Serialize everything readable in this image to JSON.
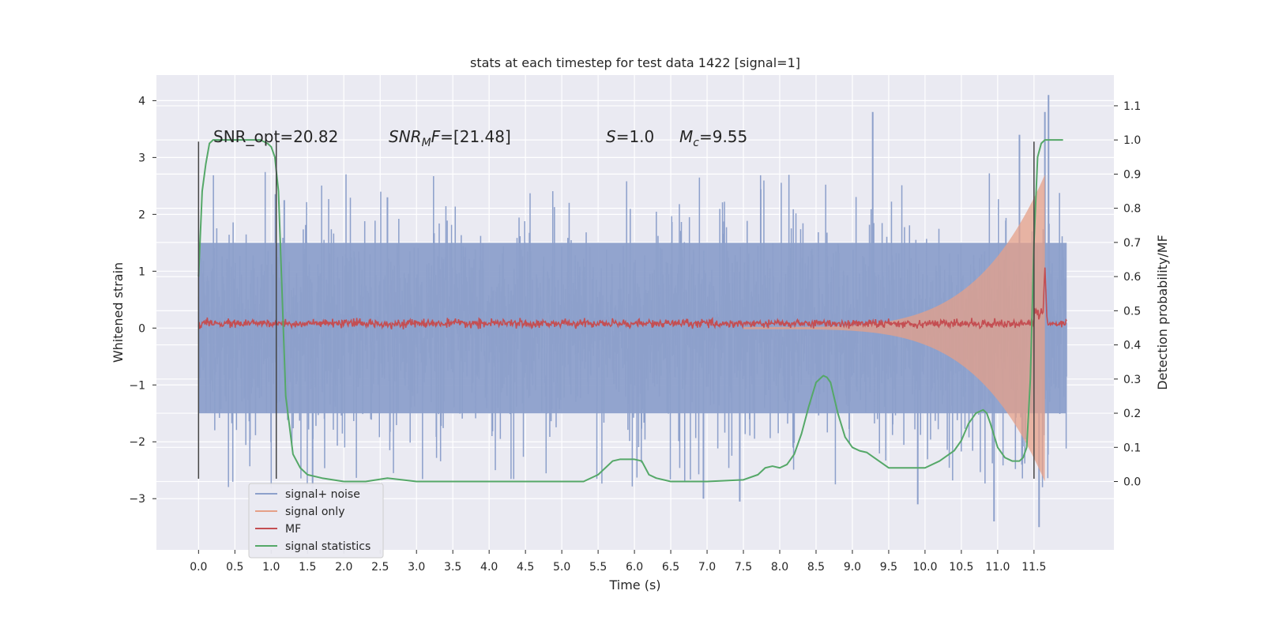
{
  "chart_data": {
    "type": "line",
    "title": "stats at each timestep for test data 1422 [signal=1]",
    "xlabel": "Time (s)",
    "ylabel": "Whitened strain",
    "ylabel_right": "Detection probability/MF",
    "xlim": [
      -0.58,
      12.6
    ],
    "ylim": [
      -3.9,
      4.45
    ],
    "ylim_right": [
      -0.2,
      1.19
    ],
    "x_ticks": [
      0.0,
      0.5,
      1.0,
      1.5,
      2.0,
      2.5,
      3.0,
      3.5,
      4.0,
      4.5,
      5.0,
      5.5,
      6.0,
      6.5,
      7.0,
      7.5,
      8.0,
      8.5,
      9.0,
      9.5,
      10.0,
      10.5,
      11.0,
      11.5
    ],
    "x_tick_labels": [
      "0.0",
      "0.5",
      "1.0",
      "1.5",
      "2.0",
      "2.5",
      "3.0",
      "3.5",
      "4.0",
      "4.5",
      "5.0",
      "5.5",
      "6.0",
      "6.5",
      "7.0",
      "7.5",
      "8.0",
      "8.5",
      "9.0",
      "9.5",
      "10.0",
      "10.5",
      "11.0",
      "11.5"
    ],
    "y_ticks": [
      -3,
      -2,
      -1,
      0,
      1,
      2,
      3,
      4
    ],
    "y_tick_labels": [
      "−3",
      "−2",
      "−1",
      "0",
      "1",
      "2",
      "3",
      "4"
    ],
    "y_right_ticks": [
      0.0,
      0.1,
      0.2,
      0.3,
      0.4,
      0.5,
      0.6,
      0.7,
      0.8,
      0.9,
      1.0,
      1.1
    ],
    "y_right_tick_labels": [
      "0.0",
      "0.1",
      "0.2",
      "0.3",
      "0.4",
      "0.5",
      "0.6",
      "0.7",
      "0.8",
      "0.9",
      "1.0",
      "1.1"
    ],
    "grid": true,
    "legend": "lower-left",
    "annotations": [
      {
        "text": "SNR_opt=20.82",
        "x": 0.2,
        "y": 3.3
      },
      {
        "text": "SNR_MF=[21.48]",
        "x": 2.6,
        "y": 3.3
      },
      {
        "text": "S=1.0",
        "x": 5.6,
        "y": 3.3
      },
      {
        "text": "M_c=9.55",
        "x": 6.6,
        "y": 3.3
      }
    ],
    "vlines": [
      {
        "x": 0.0,
        "ymin": -2.65,
        "ymax": 3.28
      },
      {
        "x": 1.07,
        "ymin": -2.65,
        "ymax": 3.28
      },
      {
        "x": 11.5,
        "ymin": -2.65,
        "ymax": 3.28
      }
    ],
    "series": [
      {
        "name": "signal+ noise",
        "axis": "left",
        "color": "#8da0cb",
        "description_values": {
          "x_range": [
            0.0,
            11.95
          ],
          "typical_amplitude": 1.5,
          "peak_max": 4.1,
          "peak_min": -3.5
        }
      },
      {
        "name": "signal only",
        "axis": "left",
        "color": "#e5a088",
        "chirp": {
          "x_start": 7.5,
          "x_end": 11.65,
          "amplitude_start": 0.02,
          "amplitude_end": 2.7
        }
      },
      {
        "name": "MF",
        "axis": "left",
        "color": "#c44e52",
        "baseline": 0.08,
        "peak": {
          "x": 11.65,
          "y": 1.0
        }
      },
      {
        "name": "signal statistics",
        "axis": "right",
        "color": "#55a868",
        "x": [
          0.0,
          0.05,
          0.1,
          0.15,
          0.2,
          0.3,
          0.5,
          0.7,
          0.85,
          0.95,
          1.0,
          1.05,
          1.1,
          1.15,
          1.2,
          1.3,
          1.4,
          1.5,
          1.7,
          2.0,
          2.3,
          2.6,
          3.0,
          3.5,
          4.0,
          4.5,
          5.0,
          5.3,
          5.5,
          5.6,
          5.7,
          5.8,
          6.0,
          6.1,
          6.2,
          6.3,
          6.5,
          7.0,
          7.5,
          7.7,
          7.8,
          7.9,
          8.0,
          8.1,
          8.2,
          8.3,
          8.4,
          8.5,
          8.6,
          8.65,
          8.7,
          8.8,
          8.9,
          9.0,
          9.1,
          9.2,
          9.3,
          9.5,
          9.7,
          9.9,
          10.0,
          10.2,
          10.4,
          10.5,
          10.6,
          10.7,
          10.8,
          10.85,
          10.9,
          11.0,
          11.1,
          11.2,
          11.3,
          11.35,
          11.4,
          11.45,
          11.5,
          11.55,
          11.6,
          11.65,
          11.7,
          11.8,
          11.9
        ],
        "values": [
          0.6,
          0.85,
          0.93,
          0.99,
          1.0,
          1.0,
          1.0,
          1.0,
          1.0,
          0.99,
          0.98,
          0.95,
          0.85,
          0.55,
          0.25,
          0.08,
          0.04,
          0.02,
          0.01,
          0.0,
          0.0,
          0.01,
          0.0,
          0.0,
          0.0,
          0.0,
          0.0,
          0.0,
          0.02,
          0.04,
          0.06,
          0.065,
          0.065,
          0.06,
          0.02,
          0.01,
          0.0,
          0.0,
          0.005,
          0.02,
          0.04,
          0.045,
          0.04,
          0.05,
          0.08,
          0.14,
          0.22,
          0.29,
          0.31,
          0.305,
          0.29,
          0.2,
          0.13,
          0.1,
          0.09,
          0.085,
          0.07,
          0.04,
          0.04,
          0.04,
          0.04,
          0.06,
          0.09,
          0.12,
          0.17,
          0.2,
          0.21,
          0.2,
          0.17,
          0.1,
          0.07,
          0.06,
          0.06,
          0.07,
          0.1,
          0.3,
          0.7,
          0.95,
          0.99,
          1.0,
          1.0,
          1.0,
          1.0
        ]
      }
    ]
  }
}
